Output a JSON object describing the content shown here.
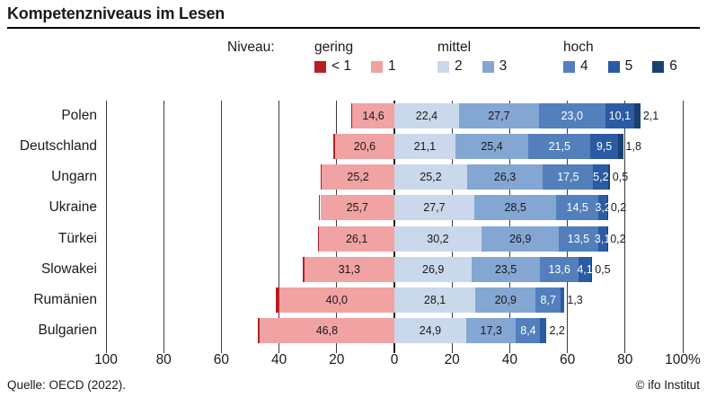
{
  "title": "Kompetenzniveaus im Lesen",
  "footer": {
    "source": "Quelle: OECD (2022).",
    "credit": "© ifo Institut"
  },
  "legend": {
    "label": "Niveau:",
    "groups": [
      {
        "name": "gering",
        "items": [
          {
            "label": "< 1",
            "color": "#b52025"
          },
          {
            "label": "1",
            "color": "#f1a2a3"
          }
        ]
      },
      {
        "name": "mittel",
        "items": [
          {
            "label": "2",
            "color": "#c9d8eb"
          },
          {
            "label": "3",
            "color": "#84a6d3"
          }
        ]
      },
      {
        "name": "hoch",
        "items": [
          {
            "label": "4",
            "color": "#537fbd"
          },
          {
            "label": "5",
            "color": "#2a5ba4"
          },
          {
            "label": "6",
            "color": "#18416f"
          }
        ]
      }
    ]
  },
  "chart_data": {
    "type": "bar",
    "variant": "diverging-stacked-horizontal",
    "title": "Kompetenzniveaus im Lesen",
    "unit": "%",
    "xlim": [
      -100,
      100
    ],
    "grid": true,
    "legend_position": "top",
    "x_ticks": [
      {
        "value": -100,
        "label": "100"
      },
      {
        "value": -80,
        "label": "80"
      },
      {
        "value": -60,
        "label": "60"
      },
      {
        "value": -40,
        "label": "40"
      },
      {
        "value": -20,
        "label": "20"
      },
      {
        "value": 0,
        "label": "0"
      },
      {
        "value": 20,
        "label": "20"
      },
      {
        "value": 40,
        "label": "40"
      },
      {
        "value": 60,
        "label": "60"
      },
      {
        "value": 80,
        "label": "80"
      },
      {
        "value": 100,
        "label": "100%"
      }
    ],
    "categories": [
      "Polen",
      "Deutschland",
      "Ungarn",
      "Ukraine",
      "Türkei",
      "Slowakei",
      "Rumänien",
      "Bulgarien"
    ],
    "series": [
      {
        "name": "< 1",
        "group": "gering",
        "side": "left",
        "color": "#b52025",
        "text": "light",
        "values": [
          0.3,
          0.5,
          0.5,
          0.5,
          0.5,
          0.6,
          1.1,
          0.6
        ],
        "labels": [
          "",
          "",
          "",
          "",
          "",
          "",
          "",
          ""
        ]
      },
      {
        "name": "1",
        "group": "gering",
        "side": "left",
        "color": "#f1a2a3",
        "text": "dark",
        "values": [
          14.6,
          20.6,
          25.2,
          25.7,
          26.1,
          31.3,
          40.0,
          46.8
        ],
        "labels": [
          "14,6",
          "20,6",
          "25,2",
          "25,7",
          "26,1",
          "31,3",
          "40,0",
          "46,8"
        ]
      },
      {
        "name": "2",
        "group": "mittel",
        "side": "right",
        "color": "#c9d8eb",
        "text": "dark",
        "values": [
          22.4,
          21.1,
          25.2,
          27.7,
          30.2,
          26.9,
          28.1,
          24.9
        ],
        "labels": [
          "22,4",
          "21,1",
          "25,2",
          "27,7",
          "30,2",
          "26,9",
          "28,1",
          "24,9"
        ]
      },
      {
        "name": "3",
        "group": "mittel",
        "side": "right",
        "color": "#84a6d3",
        "text": "dark",
        "values": [
          27.7,
          25.4,
          26.3,
          28.5,
          26.9,
          23.5,
          20.9,
          17.3
        ],
        "labels": [
          "27,7",
          "25,4",
          "26,3",
          "28,5",
          "26,9",
          "23,5",
          "20,9",
          "17,3"
        ]
      },
      {
        "name": "4",
        "group": "hoch",
        "side": "right",
        "color": "#537fbd",
        "text": "light",
        "values": [
          23.0,
          21.5,
          17.5,
          14.5,
          13.5,
          13.6,
          8.7,
          8.4
        ],
        "labels": [
          "23,0",
          "21,5",
          "17,5",
          "14,5",
          "13,5",
          "13,6",
          "8,7",
          "8,4"
        ]
      },
      {
        "name": "5",
        "group": "hoch",
        "side": "right",
        "color": "#2a5ba4",
        "text": "light",
        "values": [
          10.1,
          9.5,
          5.2,
          3.2,
          3.1,
          4.1,
          1.3,
          2.2
        ],
        "labels": [
          "10,1",
          "9,5",
          "5,2",
          "3,2",
          "3,1",
          "4,1",
          "1,3",
          "2,2"
        ]
      },
      {
        "name": "6",
        "group": "hoch",
        "side": "right",
        "color": "#18416f",
        "text": "light",
        "values": [
          2.1,
          1.8,
          0.5,
          0.2,
          0.2,
          0.5,
          0,
          0
        ],
        "labels": [
          "2,1",
          "1,8",
          "0,5",
          "0,2",
          "0,2",
          "0,5",
          "",
          ""
        ]
      }
    ]
  }
}
